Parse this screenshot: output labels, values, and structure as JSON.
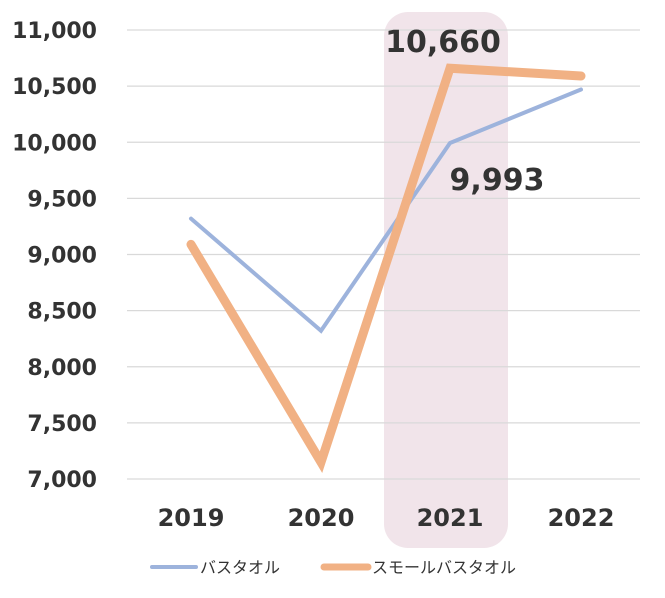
{
  "chart_data": {
    "type": "line",
    "categories": [
      "2019",
      "2020",
      "2021",
      "2022"
    ],
    "series": [
      {
        "name": "バスタオル",
        "values": [
          9320,
          8320,
          9993,
          10470
        ],
        "color": "#9db3dc"
      },
      {
        "name": "スモールバスタオル",
        "values": [
          9090,
          7150,
          10660,
          10590
        ],
        "color": "#f1b184"
      }
    ],
    "yticks": [
      7000,
      7500,
      8000,
      8500,
      9000,
      9500,
      10000,
      10500,
      11000
    ],
    "ytick_labels": [
      "7,000",
      "7,500",
      "8,000",
      "8,500",
      "9,000",
      "9,500",
      "10,000",
      "10,500",
      "11,000"
    ],
    "ylim": [
      7000,
      11000
    ],
    "grid": true,
    "legend": "bottom",
    "highlight": {
      "category": "2021",
      "color": "#f1e4ea"
    },
    "annotations": [
      {
        "text": "10,660",
        "category": "2021",
        "series": "スモールバスタオル"
      },
      {
        "text": "9,993",
        "category": "2021",
        "series": "バスタオル"
      }
    ]
  }
}
